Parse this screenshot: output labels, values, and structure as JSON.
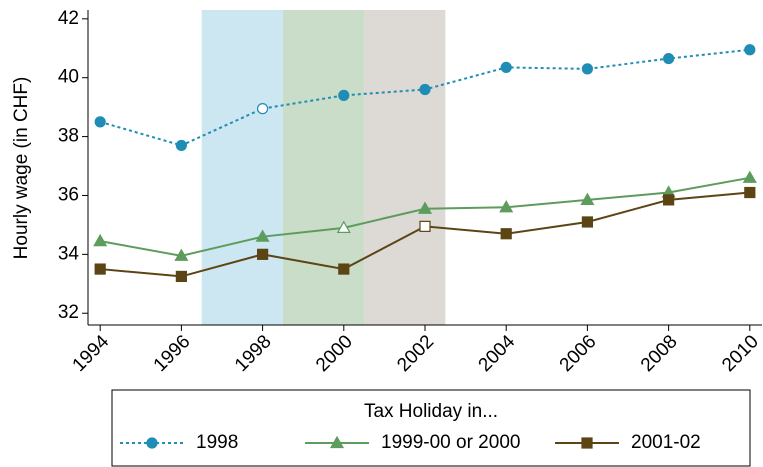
{
  "chart_data": {
    "type": "line",
    "y_label": "Hourly wage (in CHF)",
    "x": [
      1994,
      1996,
      1998,
      2000,
      2002,
      2004,
      2006,
      2008,
      2010
    ],
    "xlim": [
      1993.7,
      2010.3
    ],
    "xticks": [
      1994,
      1996,
      1998,
      2000,
      2002,
      2004,
      2006,
      2008,
      2010
    ],
    "ylim": [
      31.6,
      42.3
    ],
    "yticks": [
      32,
      34,
      36,
      38,
      40,
      42
    ],
    "grid": false,
    "shaded_regions": [
      {
        "start": 1996.5,
        "end": 1998.5,
        "color": "#cce6f2"
      },
      {
        "start": 1998.5,
        "end": 2000.5,
        "color": "#c9ddc9"
      },
      {
        "start": 2000.5,
        "end": 2002.5,
        "color": "#ddd9d4"
      }
    ],
    "legend_title": "Tax Holiday in...",
    "legend_position": "bottom",
    "series": [
      {
        "name": "1998",
        "color": "#1f8db4",
        "dash": "dotted",
        "marker": "circle",
        "hollow_x": 1998,
        "values": [
          38.5,
          37.7,
          38.95,
          39.4,
          39.6,
          40.35,
          40.3,
          40.65,
          40.95
        ]
      },
      {
        "name": "1999-00 or 2000",
        "color": "#5d9c5d",
        "dash": "solid",
        "marker": "triangle",
        "hollow_x": 2000,
        "values": [
          34.45,
          33.95,
          34.6,
          34.9,
          35.55,
          35.6,
          35.85,
          36.1,
          36.6
        ]
      },
      {
        "name": "2001-02",
        "color": "#5c4415",
        "dash": "solid",
        "marker": "square",
        "hollow_x": 2002,
        "values": [
          33.5,
          33.25,
          34.0,
          33.5,
          34.95,
          34.7,
          35.1,
          35.85,
          36.1
        ]
      }
    ]
  }
}
